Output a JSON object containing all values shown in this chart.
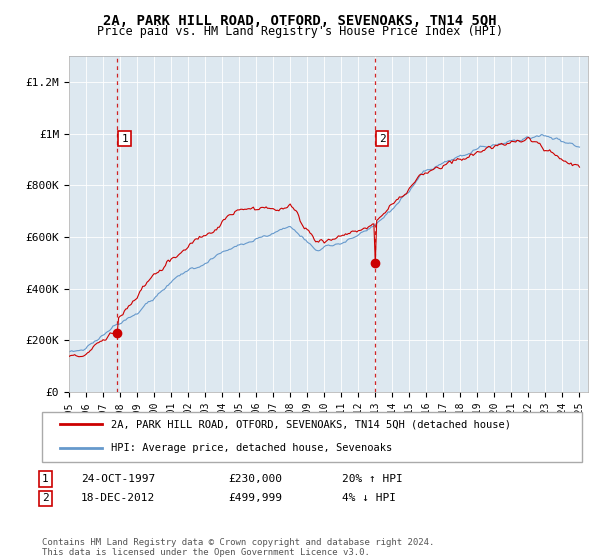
{
  "title": "2A, PARK HILL ROAD, OTFORD, SEVENOAKS, TN14 5QH",
  "subtitle": "Price paid vs. HM Land Registry's House Price Index (HPI)",
  "ylabel_ticks": [
    "£0",
    "£200K",
    "£400K",
    "£600K",
    "£800K",
    "£1M",
    "£1.2M"
  ],
  "ytick_values": [
    0,
    200000,
    400000,
    600000,
    800000,
    1000000,
    1200000
  ],
  "ylim": [
    0,
    1300000
  ],
  "xlim_start": 1995.0,
  "xlim_end": 2025.5,
  "sale1_date": 1997.82,
  "sale1_price": 230000,
  "sale1_label": "1",
  "sale2_date": 2012.96,
  "sale2_price": 499999,
  "sale2_label": "2",
  "legend_red": "2A, PARK HILL ROAD, OTFORD, SEVENOAKS, TN14 5QH (detached house)",
  "legend_blue": "HPI: Average price, detached house, Sevenoaks",
  "annotation1_date": "24-OCT-1997",
  "annotation1_price": "£230,000",
  "annotation1_hpi": "20% ↑ HPI",
  "annotation2_date": "18-DEC-2012",
  "annotation2_price": "£499,999",
  "annotation2_hpi": "4% ↓ HPI",
  "footer": "Contains HM Land Registry data © Crown copyright and database right 2024.\nThis data is licensed under the Open Government Licence v3.0.",
  "bg_color": "#ffffff",
  "plot_bg_color": "#dde8f0",
  "grid_color": "#ffffff",
  "red_line_color": "#cc0000",
  "blue_line_color": "#6699cc",
  "dashed_line_color": "#cc0000"
}
